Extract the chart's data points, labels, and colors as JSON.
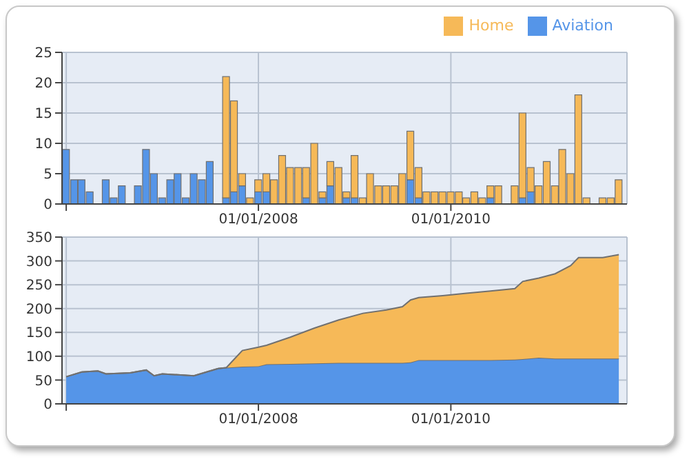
{
  "chart_data": [
    {
      "type": "bar",
      "stacked": true,
      "grid": true,
      "legend": "top right",
      "x": [
        "2006-01",
        "2006-02",
        "2006-03",
        "2006-04",
        "2006-05",
        "2006-06",
        "2006-07",
        "2006-08",
        "2006-09",
        "2006-10",
        "2006-11",
        "2006-12",
        "2007-01",
        "2007-02",
        "2007-03",
        "2007-04",
        "2007-05",
        "2007-06",
        "2007-07",
        "2007-08",
        "2007-09",
        "2007-10",
        "2007-11",
        "2007-12",
        "2008-01",
        "2008-02",
        "2008-03",
        "2008-04",
        "2008-05",
        "2008-06",
        "2008-07",
        "2008-08",
        "2008-09",
        "2008-10",
        "2008-11",
        "2008-12",
        "2009-01",
        "2009-02",
        "2009-03",
        "2009-04",
        "2009-05",
        "2009-06",
        "2009-07",
        "2009-08",
        "2009-09",
        "2009-10",
        "2009-11",
        "2009-12",
        "2010-01",
        "2010-02",
        "2010-03",
        "2010-04",
        "2010-05",
        "2010-06",
        "2010-07",
        "2010-08",
        "2010-09",
        "2010-10",
        "2010-11",
        "2010-12",
        "2011-01",
        "2011-02",
        "2011-03",
        "2011-04",
        "2011-05",
        "2011-06",
        "2011-07",
        "2011-08",
        "2011-09",
        "2011-10"
      ],
      "xlim": [
        "2005-12-16",
        "2011-11-01"
      ],
      "xticks": [
        {
          "value": "2006-01-01",
          "label": null
        },
        {
          "value": "2008-01-01",
          "label": "01/01/2008"
        },
        {
          "value": "2010-01-01",
          "label": "01/01/2010"
        }
      ],
      "ylim": [
        0,
        25
      ],
      "yticks": [
        0,
        5,
        10,
        15,
        20,
        25
      ],
      "series": [
        {
          "name": "Aviation",
          "color": "#5595e8",
          "values": [
            9,
            4,
            4,
            2,
            null,
            4,
            1,
            3,
            null,
            3,
            9,
            5,
            1,
            4,
            5,
            1,
            5,
            4,
            7,
            null,
            1,
            2,
            3,
            null,
            2,
            2,
            null,
            null,
            null,
            null,
            1,
            null,
            1,
            3,
            null,
            1,
            1,
            null,
            null,
            null,
            null,
            null,
            null,
            4,
            1,
            null,
            null,
            null,
            null,
            null,
            null,
            null,
            null,
            1,
            null,
            null,
            null,
            1,
            2,
            null,
            null,
            null,
            null,
            null,
            null,
            null,
            null,
            null,
            null,
            null
          ]
        },
        {
          "name": "Home",
          "color": "#f6b958",
          "values": [
            null,
            null,
            null,
            null,
            null,
            null,
            null,
            null,
            null,
            null,
            null,
            null,
            null,
            null,
            null,
            null,
            null,
            null,
            null,
            null,
            20,
            15,
            2,
            1,
            2,
            3,
            4,
            8,
            6,
            6,
            5,
            10,
            1,
            4,
            6,
            1,
            7,
            1,
            5,
            3,
            3,
            3,
            5,
            8,
            5,
            2,
            2,
            2,
            2,
            2,
            1,
            2,
            1,
            2,
            3,
            null,
            3,
            14,
            4,
            3,
            7,
            3,
            9,
            5,
            18,
            1,
            null,
            1,
            1,
            4
          ]
        }
      ]
    },
    {
      "type": "area",
      "stacked": true,
      "grid": true,
      "x": [
        "2006-01",
        "2006-03",
        "2006-05",
        "2006-06",
        "2006-09",
        "2006-11",
        "2006-12",
        "2007-01",
        "2007-05",
        "2007-07",
        "2007-08",
        "2007-09",
        "2007-11",
        "2008-01",
        "2008-02",
        "2008-05",
        "2008-08",
        "2008-11",
        "2009-02",
        "2009-05",
        "2009-07",
        "2009-08",
        "2009-09",
        "2009-12",
        "2010-03",
        "2010-06",
        "2010-09",
        "2010-10",
        "2010-12",
        "2011-02",
        "2011-04",
        "2011-05",
        "2011-08",
        "2011-10"
      ],
      "xlim": [
        "2005-12-16",
        "2011-11-01"
      ],
      "xticks": [
        {
          "value": "2006-01-01",
          "label": null
        },
        {
          "value": "2008-01-01",
          "label": "01/01/2008"
        },
        {
          "value": "2010-01-01",
          "label": "01/01/2010"
        }
      ],
      "ylim": [
        0,
        350
      ],
      "yticks": [
        0,
        50,
        100,
        150,
        200,
        250,
        300,
        350
      ],
      "series": [
        {
          "color": "#5595e8",
          "values": [
            57,
            67,
            69,
            63,
            65,
            71,
            59,
            63,
            59,
            69,
            74,
            76,
            78,
            79,
            83,
            84,
            85,
            86,
            86,
            86,
            86,
            87,
            92,
            92,
            92,
            92,
            93,
            94,
            97,
            95,
            95,
            95,
            95,
            95
          ]
        },
        {
          "color": "#f6b958",
          "values": [
            0,
            0,
            0,
            0,
            0,
            0,
            0,
            0,
            0,
            0,
            0,
            0,
            34,
            40,
            40,
            56,
            74,
            90,
            104,
            111,
            118,
            131,
            131,
            135,
            140,
            145,
            149,
            163,
            167,
            178,
            195,
            212,
            212,
            218
          ]
        }
      ]
    }
  ]
}
